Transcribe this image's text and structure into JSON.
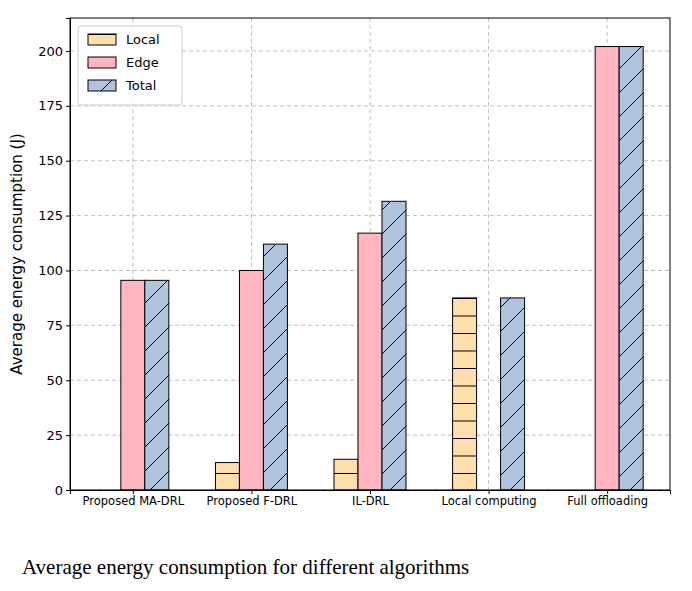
{
  "chart_data": {
    "type": "bar",
    "title": "Average energy consumption for different algorithms",
    "y_label": "Average energy consumption (J)",
    "categories": [
      "Proposed MA-DRL",
      "Proposed F-DRL",
      "IL-DRL",
      "Local computing",
      "Full offloading"
    ],
    "series": [
      {
        "name": "Local",
        "color": "#ffdead",
        "values": [
          0,
          12.5,
          14,
          87.5,
          0
        ]
      },
      {
        "name": "Edge",
        "color": "#ffb6c1",
        "values": [
          95.5,
          100,
          117,
          0,
          202
        ]
      },
      {
        "name": "Total",
        "color": "#b0c4de",
        "values": [
          95.5,
          112,
          131.5,
          87.5,
          202
        ]
      }
    ],
    "ylim": [
      0,
      215
    ],
    "yticks": [
      0,
      25,
      50,
      75,
      100,
      125,
      150,
      175,
      200
    ],
    "grid": true,
    "legend": "upper left"
  }
}
